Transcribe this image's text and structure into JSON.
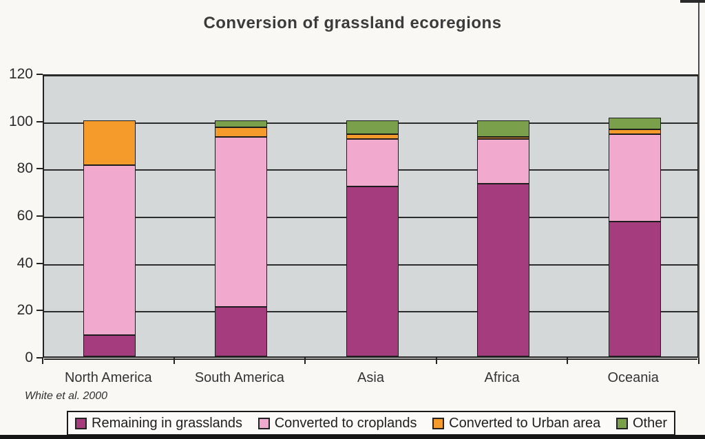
{
  "chart_data": {
    "type": "bar",
    "stacked": true,
    "title": "Conversion of grassland ecoregions",
    "source": "White et al. 2000",
    "xlabel": "",
    "ylabel": "",
    "categories": [
      "North America",
      "South America",
      "Asia",
      "Africa",
      "Oceania"
    ],
    "series": [
      {
        "name": "Remaining in grasslands",
        "color": "#A53C7E",
        "values": [
          9,
          21,
          72,
          73,
          57
        ]
      },
      {
        "name": "Converted to croplands",
        "color": "#F2A9CE",
        "values": [
          72,
          72,
          20,
          19,
          37
        ]
      },
      {
        "name": "Converted to Urban area",
        "color": "#F49B2C",
        "values": [
          19,
          4,
          2,
          1,
          2
        ]
      },
      {
        "name": "Other",
        "color": "#7BA04B",
        "values": [
          0,
          3,
          6,
          7,
          5
        ]
      }
    ],
    "ylim": [
      0,
      120
    ],
    "yticks": [
      0,
      20,
      40,
      60,
      80,
      100,
      120
    ],
    "grid": true,
    "legend_position": "bottom",
    "plot_background": "#D5D8D8",
    "gridline_color": "#2B2B2B"
  }
}
